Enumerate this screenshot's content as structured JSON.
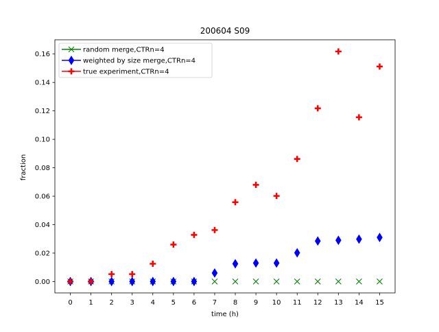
{
  "chart_data": {
    "type": "scatter",
    "title": "200604 S09",
    "xlabel": "time (h)",
    "ylabel": "fraction",
    "xlim": [
      -0.75,
      15.75
    ],
    "ylim": [
      -0.008,
      0.17
    ],
    "x_ticks": [
      0,
      1,
      2,
      3,
      4,
      5,
      6,
      7,
      8,
      9,
      10,
      11,
      12,
      13,
      14,
      15
    ],
    "y_ticks": [
      0.0,
      0.02,
      0.04,
      0.06,
      0.08,
      0.1,
      0.12,
      0.14,
      0.16
    ],
    "y_tick_labels": [
      "0.00",
      "0.02",
      "0.04",
      "0.06",
      "0.08",
      "0.10",
      "0.12",
      "0.14",
      "0.16"
    ],
    "grid": false,
    "legend_position": "top-left",
    "series": [
      {
        "name": "random merge,CTRn=4",
        "color": "#008000",
        "marker": "x",
        "x": [
          0,
          1,
          2,
          3,
          4,
          5,
          6,
          7,
          8,
          9,
          10,
          11,
          12,
          13,
          14,
          15
        ],
        "y": [
          0,
          0,
          0,
          0,
          0,
          0,
          0,
          0,
          0,
          0,
          0,
          0,
          0,
          0,
          0,
          0
        ]
      },
      {
        "name": "weighted by size merge,CTRn=4",
        "color": "#0000ff",
        "marker": "thin_diamond",
        "x": [
          0,
          1,
          2,
          3,
          4,
          5,
          6,
          7,
          8,
          9,
          10,
          11,
          12,
          13,
          14,
          15
        ],
        "y": [
          0,
          0,
          0,
          0,
          0,
          0,
          0,
          0.006,
          0.0125,
          0.013,
          0.013,
          0.0202,
          0.0285,
          0.029,
          0.0298,
          0.031
        ]
      },
      {
        "name": "true experiment,CTRn=4",
        "color": "#ff0000",
        "marker": "plus",
        "x": [
          0,
          1,
          2,
          3,
          4,
          5,
          6,
          7,
          8,
          9,
          10,
          11,
          12,
          13,
          14,
          15
        ],
        "y": [
          0,
          0,
          0.0052,
          0.0052,
          0.0125,
          0.026,
          0.0328,
          0.0362,
          0.0558,
          0.068,
          0.0602,
          0.0862,
          0.1218,
          0.1618,
          0.1155,
          0.1512
        ]
      }
    ]
  }
}
